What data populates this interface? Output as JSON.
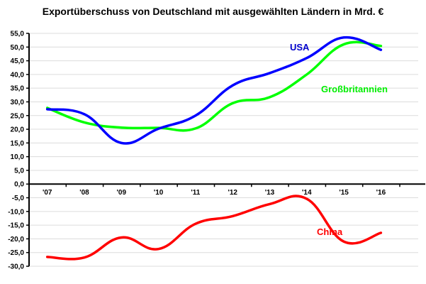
{
  "chart_data": {
    "type": "line",
    "title": "Exportüberschuss von Deutschland mit ausgewählten Ländern in Mrd. €",
    "xlabel": "",
    "ylabel": "",
    "categories": [
      "'07",
      "'08",
      "'09",
      "'10",
      "'11",
      "'12",
      "'13",
      "'14",
      "'15",
      "'16"
    ],
    "ylim": [
      -30,
      55
    ],
    "yticks": [
      55,
      50,
      45,
      40,
      35,
      30,
      25,
      20,
      15,
      10,
      5,
      0,
      -5,
      -10,
      -15,
      -20,
      -25,
      -30
    ],
    "ytick_labels": [
      "55,0",
      "50,0",
      "45,0",
      "40,0",
      "35,0",
      "30,0",
      "25,0",
      "20,0",
      "15,0",
      "10,0",
      "5,0",
      "0,0",
      "-5,0",
      "-10,0",
      "-15,0",
      "-20,0",
      "-25,0",
      "-30,0"
    ],
    "grid": true,
    "legend": "inline labels",
    "series": [
      {
        "name": "USA",
        "color": "#0000ff",
        "values": [
          27.3,
          25.5,
          15.0,
          20.2,
          25.0,
          36.0,
          40.5,
          46.0,
          53.5,
          49.0
        ]
      },
      {
        "name": "Großbritannien",
        "color": "#00ff00",
        "values": [
          27.8,
          22.5,
          20.6,
          20.5,
          20.3,
          29.5,
          31.7,
          40.0,
          51.0,
          50.4
        ]
      },
      {
        "name": "China",
        "color": "#ff0000",
        "values": [
          -26.6,
          -26.8,
          -19.5,
          -23.7,
          -14.5,
          -11.7,
          -7.3,
          -5.4,
          -21.0,
          -17.8
        ]
      }
    ]
  }
}
